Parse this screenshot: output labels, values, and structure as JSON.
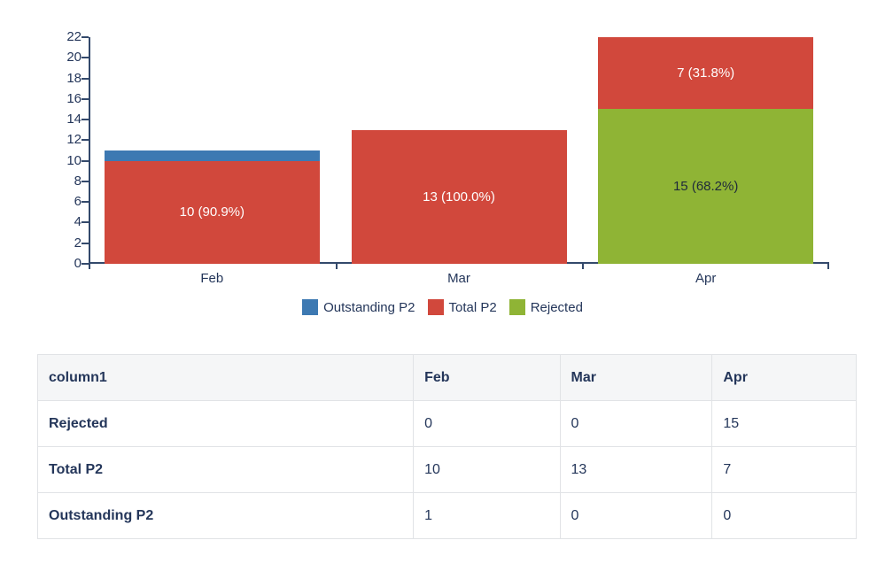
{
  "chart_data": {
    "type": "bar",
    "stacked": true,
    "categories": [
      "Feb",
      "Mar",
      "Apr"
    ],
    "series": [
      {
        "name": "Rejected",
        "color": "#8fb435",
        "values": [
          0,
          0,
          15
        ],
        "labels": [
          "",
          "",
          "15 (68.2%)"
        ],
        "label_color": "#1f2a3a"
      },
      {
        "name": "Total P2",
        "color": "#d1483c",
        "values": [
          10,
          13,
          7
        ],
        "labels": [
          "10 (90.9%)",
          "13 (100.0%)",
          "7 (31.8%)"
        ],
        "label_color": "#ffffff"
      },
      {
        "name": "Outstanding P2",
        "color": "#3d79b2",
        "values": [
          1,
          0,
          0
        ],
        "labels": [
          "",
          "",
          ""
        ],
        "label_color": "#ffffff"
      }
    ],
    "legend": [
      {
        "label": "Outstanding P2",
        "color": "#3d79b2"
      },
      {
        "label": "Total P2",
        "color": "#d1483c"
      },
      {
        "label": "Rejected",
        "color": "#8fb435"
      }
    ],
    "ylim": [
      0,
      22
    ],
    "yticks": [
      0,
      2,
      4,
      6,
      8,
      10,
      12,
      14,
      16,
      18,
      20,
      22
    ],
    "axis_color": "#33496b",
    "text_color": "#24365a",
    "legend_position": "bottom",
    "grid": false
  },
  "table": {
    "headers": [
      "column1",
      "Feb",
      "Mar",
      "Apr"
    ],
    "rows": [
      [
        "Rejected",
        "0",
        "0",
        "15"
      ],
      [
        "Total P2",
        "10",
        "13",
        "7"
      ],
      [
        "Outstanding P2",
        "1",
        "0",
        "0"
      ]
    ]
  }
}
